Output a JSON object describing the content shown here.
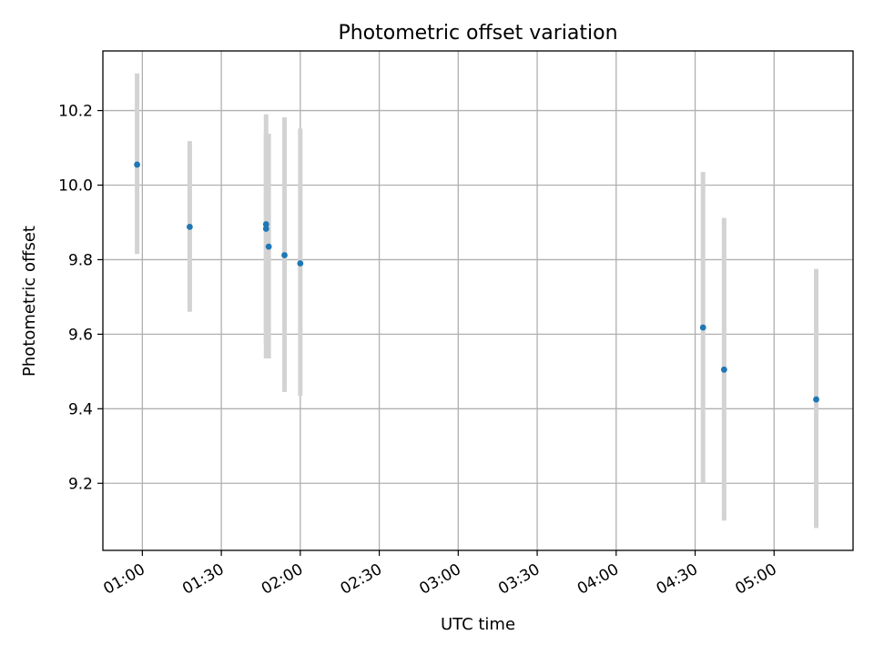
{
  "chart_data": {
    "type": "scatter",
    "title": "Photometric offset variation",
    "xlabel": "UTC time",
    "ylabel": "Photometric offset",
    "xlim": [
      "00:45",
      "05:30"
    ],
    "ylim": [
      9.02,
      10.36
    ],
    "grid": true,
    "x_ticks": [
      "01:00",
      "01:30",
      "02:00",
      "02:30",
      "03:00",
      "03:30",
      "04:00",
      "04:30",
      "05:00"
    ],
    "y_ticks": [
      "9.2",
      "9.4",
      "9.6",
      "9.8",
      "10.0",
      "10.2"
    ],
    "points": [
      {
        "x": "00:58",
        "y": 10.055,
        "yerr_low": 9.815,
        "yerr_high": 10.3
      },
      {
        "x": "01:18",
        "y": 9.888,
        "yerr_low": 9.66,
        "yerr_high": 10.118
      },
      {
        "x": "01:47",
        "y": 9.883,
        "yerr_low": 9.575,
        "yerr_high": 10.19
      },
      {
        "x": "01:47",
        "y": 9.895,
        "yerr_low": 9.535,
        "yerr_high": 10.138
      },
      {
        "x": "01:48",
        "y": 9.835,
        "yerr_low": 9.535,
        "yerr_high": 10.138
      },
      {
        "x": "01:54",
        "y": 9.812,
        "yerr_low": 9.445,
        "yerr_high": 10.182
      },
      {
        "x": "02:00",
        "y": 9.79,
        "yerr_low": 9.435,
        "yerr_high": 10.152
      },
      {
        "x": "04:33",
        "y": 9.618,
        "yerr_low": 9.2,
        "yerr_high": 10.035
      },
      {
        "x": "04:41",
        "y": 9.505,
        "yerr_low": 9.1,
        "yerr_high": 9.912
      },
      {
        "x": "05:16",
        "y": 9.425,
        "yerr_low": 9.08,
        "yerr_high": 9.775
      }
    ],
    "colors": {
      "point": "#1f77b4",
      "errorbar": "#d3d3d3",
      "grid": "#b0b0b0",
      "axes": "#000000"
    }
  }
}
